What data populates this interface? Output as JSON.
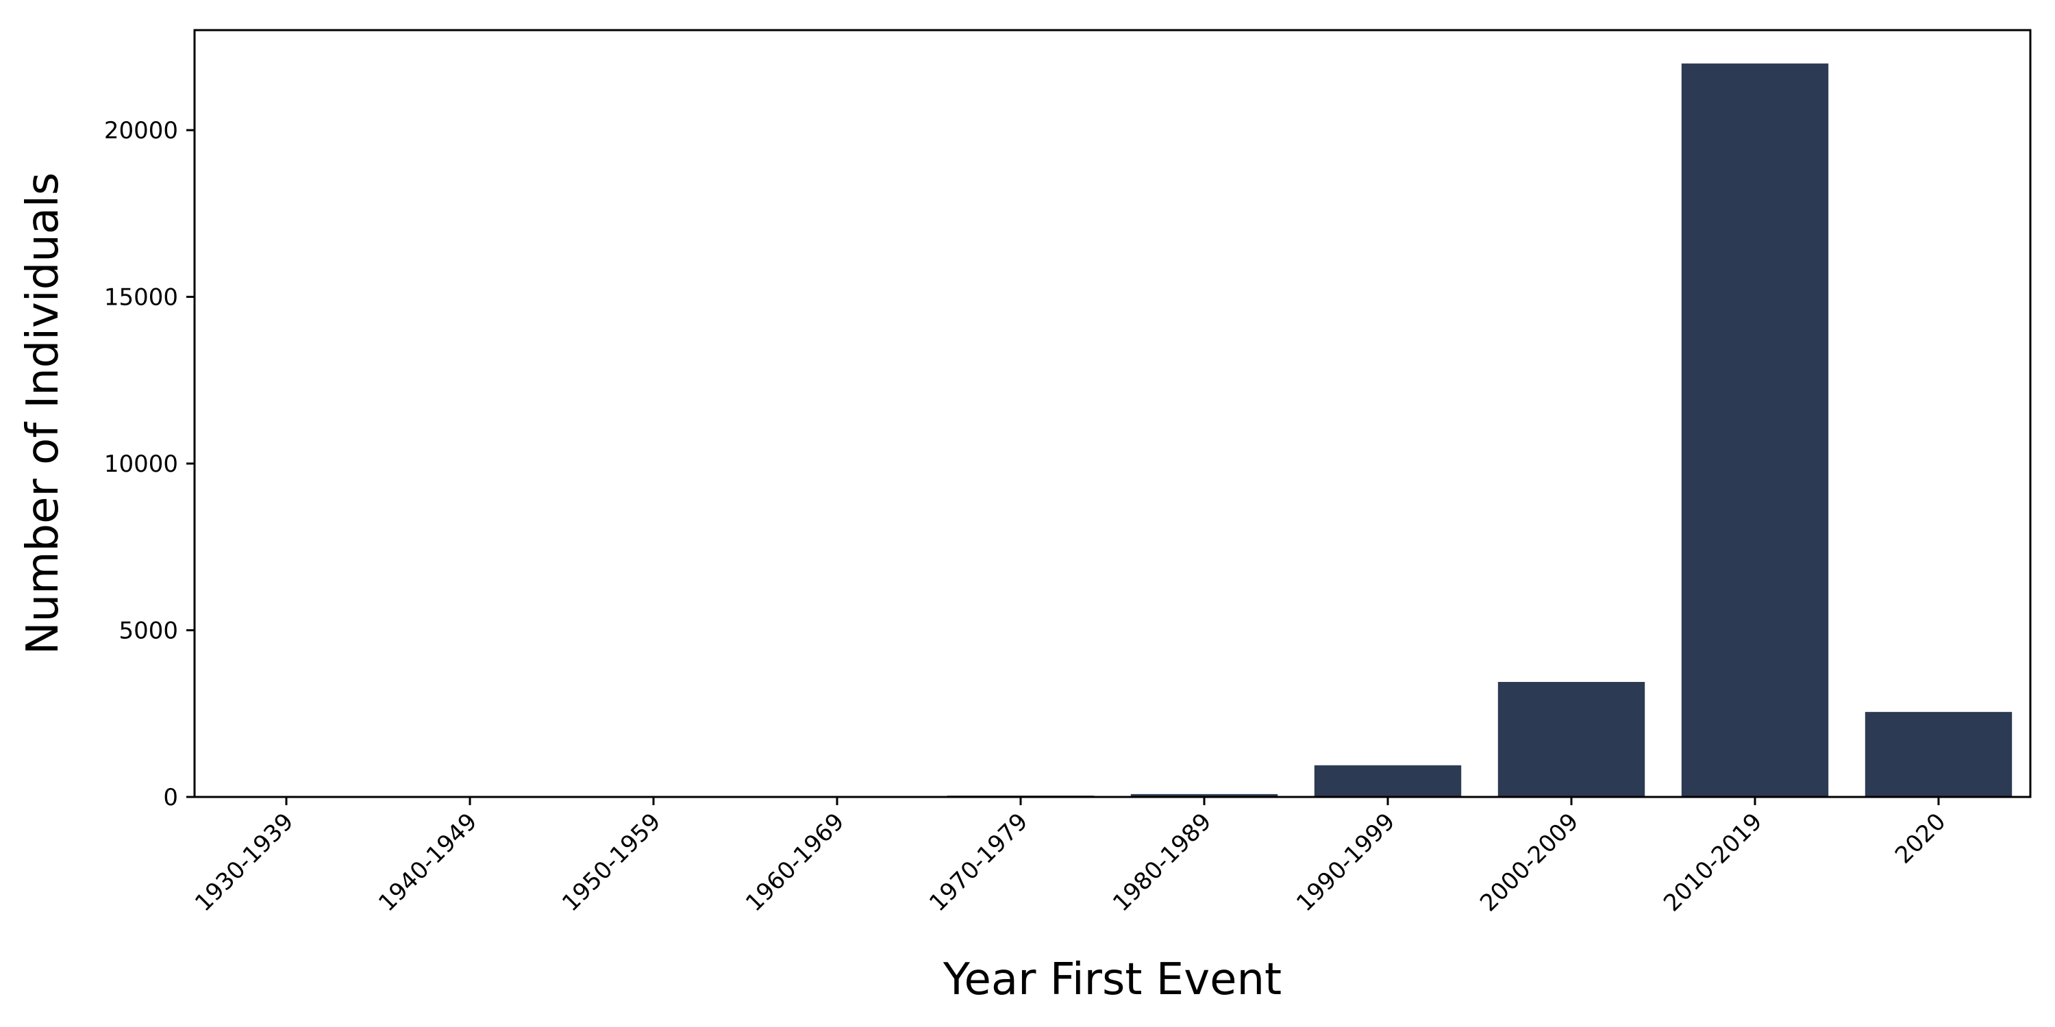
{
  "chart_data": {
    "type": "bar",
    "title": "",
    "xlabel": "Year First Event",
    "ylabel": "Number of Individuals",
    "categories": [
      "1930-1939",
      "1940-1949",
      "1950-1959",
      "1960-1969",
      "1970-1979",
      "1980-1989",
      "1990-1999",
      "2000-2009",
      "2010-2019",
      "2020"
    ],
    "values": [
      1,
      2,
      3,
      8,
      40,
      85,
      950,
      3450,
      22000,
      2550
    ],
    "ylim": [
      0,
      23000
    ],
    "yticks": [
      0,
      5000,
      10000,
      15000,
      20000
    ],
    "grid": false,
    "legend": false,
    "bar_color": "#2d3a53"
  }
}
